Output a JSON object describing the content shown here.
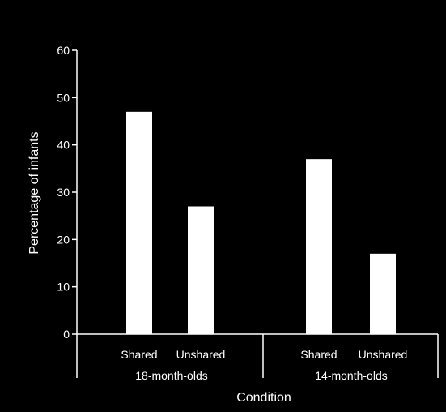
{
  "chart_data": {
    "type": "bar",
    "title": "",
    "xlabel": "Condition",
    "ylabel": "Percentage of infants",
    "ylim": [
      0,
      60
    ],
    "yticks": [
      0,
      10,
      20,
      30,
      40,
      50,
      60
    ],
    "grid": false,
    "groups": [
      {
        "label": "18-month-olds",
        "categories": [
          "Shared",
          "Unshared"
        ],
        "values": [
          47,
          27
        ]
      },
      {
        "label": "14-month-olds",
        "categories": [
          "Shared",
          "Unshared"
        ],
        "values": [
          37,
          17
        ]
      }
    ],
    "colors": {
      "background": "#000000",
      "bar": "#ffffff",
      "axis": "#ffffff",
      "text": "#ffffff"
    }
  }
}
